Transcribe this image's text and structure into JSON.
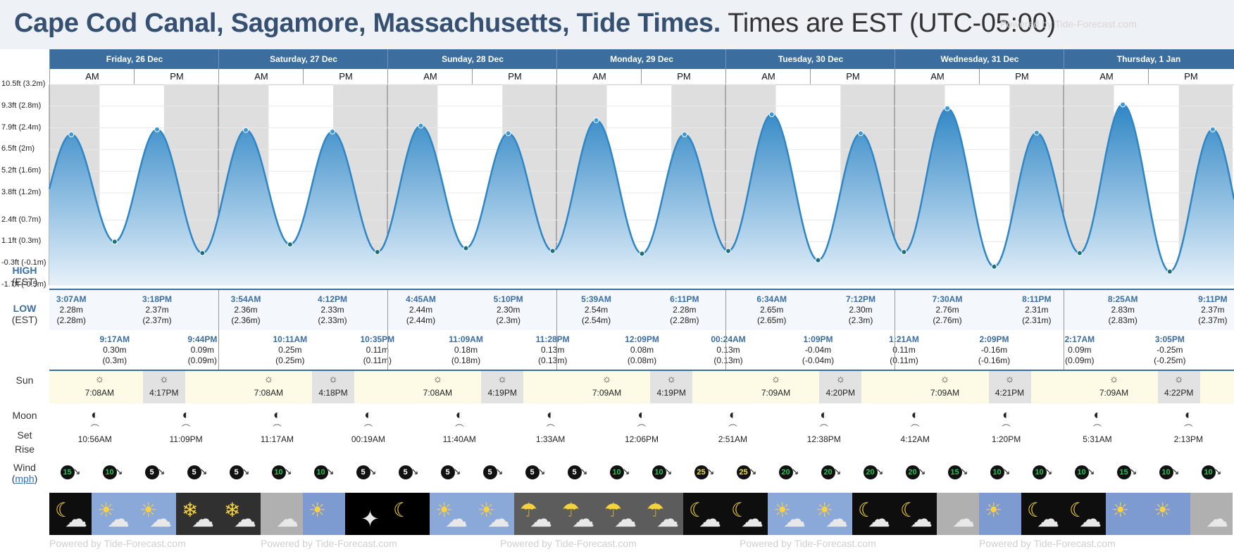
{
  "page": {
    "title": "Cape Cod Canal, Sagamore, Massachusetts, Tide Times.",
    "timezone": "Times are EST (UTC-05:00)",
    "watermark": "Powered by Tide-Forecast.com"
  },
  "rows": {
    "high_label": "HIGH",
    "high_sub": "(EST)",
    "low_label": "LOW",
    "low_sub": "(EST)",
    "sun": "Sun",
    "moon": "Moon",
    "set": "Set",
    "rise": "Rise",
    "wind": "Wind",
    "wind_unit": "mph"
  },
  "days": [
    "Friday, 26 Dec",
    "Saturday, 27 Dec",
    "Sunday, 28 Dec",
    "Monday, 29 Dec",
    "Tuesday, 30 Dec",
    "Wednesday, 31 Dec",
    "Thursday, 1 Jan"
  ],
  "ampm": [
    "AM",
    "PM"
  ],
  "chart_data": {
    "type": "area",
    "y_ticks": [
      "10.5ft (3.2m)",
      "9.3ft (2.8m)",
      "7.9ft (2.4m)",
      "6.5ft (2m)",
      "5.2ft (1.6m)",
      "3.8ft (1.2m)",
      "2.4ft (0.7m)",
      "1.1ft (0.3m)",
      "-0.3ft (-0.1m)",
      "-1.7ft (-0.5m)"
    ],
    "ylim_m": [
      -0.5,
      3.2
    ],
    "points": [
      {
        "day": 0,
        "time": "3:07AM",
        "m": 2.28
      },
      {
        "day": 0,
        "time": "9:17AM",
        "m": 0.3
      },
      {
        "day": 0,
        "time": "3:18PM",
        "m": 2.37
      },
      {
        "day": 0,
        "time": "9:44PM",
        "m": 0.09
      },
      {
        "day": 1,
        "time": "3:54AM",
        "m": 2.36
      },
      {
        "day": 1,
        "time": "10:11AM",
        "m": 0.25
      },
      {
        "day": 1,
        "time": "4:12PM",
        "m": 2.33
      },
      {
        "day": 1,
        "time": "10:35PM",
        "m": 0.11
      },
      {
        "day": 2,
        "time": "4:45AM",
        "m": 2.44
      },
      {
        "day": 2,
        "time": "11:09AM",
        "m": 0.18
      },
      {
        "day": 2,
        "time": "5:10PM",
        "m": 2.3
      },
      {
        "day": 2,
        "time": "11:28PM",
        "m": 0.13
      },
      {
        "day": 3,
        "time": "5:39AM",
        "m": 2.54
      },
      {
        "day": 3,
        "time": "12:09PM",
        "m": 0.08
      },
      {
        "day": 3,
        "time": "6:11PM",
        "m": 2.28
      },
      {
        "day": 4,
        "time": "00:24AM",
        "m": 0.13
      },
      {
        "day": 4,
        "time": "6:34AM",
        "m": 2.65
      },
      {
        "day": 4,
        "time": "1:09PM",
        "m": -0.04
      },
      {
        "day": 4,
        "time": "7:12PM",
        "m": 2.3
      },
      {
        "day": 5,
        "time": "1:21AM",
        "m": 0.11
      },
      {
        "day": 5,
        "time": "7:30AM",
        "m": 2.76
      },
      {
        "day": 5,
        "time": "2:09PM",
        "m": -0.16
      },
      {
        "day": 5,
        "time": "8:11PM",
        "m": 2.31
      },
      {
        "day": 6,
        "time": "2:17AM",
        "m": 0.09
      },
      {
        "day": 6,
        "time": "8:25AM",
        "m": 2.83
      },
      {
        "day": 6,
        "time": "3:05PM",
        "m": -0.25
      },
      {
        "day": 6,
        "time": "9:11PM",
        "m": 2.37
      }
    ]
  },
  "highs": [
    {
      "time": "3:07AM",
      "m": "2.28m",
      "paren": "(2.28m)"
    },
    {
      "time": "3:18PM",
      "m": "2.37m",
      "paren": "(2.37m)"
    },
    {
      "time": "3:54AM",
      "m": "2.36m",
      "paren": "(2.36m)"
    },
    {
      "time": "4:12PM",
      "m": "2.33m",
      "paren": "(2.33m)"
    },
    {
      "time": "4:45AM",
      "m": "2.44m",
      "paren": "(2.44m)"
    },
    {
      "time": "5:10PM",
      "m": "2.30m",
      "paren": "(2.3m)"
    },
    {
      "time": "5:39AM",
      "m": "2.54m",
      "paren": "(2.54m)"
    },
    {
      "time": "6:11PM",
      "m": "2.28m",
      "paren": "(2.28m)"
    },
    {
      "time": "6:34AM",
      "m": "2.65m",
      "paren": "(2.65m)"
    },
    {
      "time": "7:12PM",
      "m": "2.30m",
      "paren": "(2.3m)"
    },
    {
      "time": "7:30AM",
      "m": "2.76m",
      "paren": "(2.76m)"
    },
    {
      "time": "8:11PM",
      "m": "2.31m",
      "paren": "(2.31m)"
    },
    {
      "time": "8:25AM",
      "m": "2.83m",
      "paren": "(2.83m)"
    },
    {
      "time": "9:11PM",
      "m": "2.37m",
      "paren": "(2.37m)"
    }
  ],
  "lows": [
    {
      "time": "9:17AM",
      "m": "0.30m",
      "paren": "(0.3m)"
    },
    {
      "time": "9:44PM",
      "m": "0.09m",
      "paren": "(0.09m)"
    },
    {
      "time": "10:11AM",
      "m": "0.25m",
      "paren": "(0.25m)"
    },
    {
      "time": "10:35PM",
      "m": "0.11m",
      "paren": "(0.11m)"
    },
    {
      "time": "11:09AM",
      "m": "0.18m",
      "paren": "(0.18m)"
    },
    {
      "time": "11:28PM",
      "m": "0.13m",
      "paren": "(0.13m)"
    },
    {
      "time": "12:09PM",
      "m": "0.08m",
      "paren": "(0.08m)"
    },
    {
      "time": "00:24AM",
      "m": "0.13m",
      "paren": "(0.13m)"
    },
    {
      "time": "1:09PM",
      "m": "-0.04m",
      "paren": "(-0.04m)"
    },
    {
      "time": "1:21AM",
      "m": "0.11m",
      "paren": "(0.11m)"
    },
    {
      "time": "2:09PM",
      "m": "-0.16m",
      "paren": "(-0.16m)"
    },
    {
      "time": "2:17AM",
      "m": "0.09m",
      "paren": "(0.09m)"
    },
    {
      "time": "3:05PM",
      "m": "-0.25m",
      "paren": "(-0.25m)"
    }
  ],
  "sun": [
    {
      "rise": "7:08AM",
      "set": "4:17PM"
    },
    {
      "rise": "7:08AM",
      "set": "4:18PM"
    },
    {
      "rise": "7:08AM",
      "set": "4:19PM"
    },
    {
      "rise": "7:09AM",
      "set": "4:19PM"
    },
    {
      "rise": "7:09AM",
      "set": "4:20PM"
    },
    {
      "rise": "7:09AM",
      "set": "4:21PM"
    },
    {
      "rise": "7:09AM",
      "set": "4:22PM"
    }
  ],
  "moon": [
    "10:56AM",
    "11:09PM",
    "11:17AM",
    "00:19AM",
    "11:40AM",
    "1:33AM",
    "12:06PM",
    "2:51AM",
    "12:38PM",
    "4:12AM",
    "1:20PM",
    "5:31AM",
    "2:13PM"
  ],
  "wind": [
    "15",
    "10",
    "5",
    "5",
    "5",
    "10",
    "10",
    "5",
    "5",
    "5",
    "5",
    "5",
    "5",
    "10",
    "10",
    "25",
    "25",
    "20",
    "20",
    "20",
    "20",
    "15",
    "10",
    "10",
    "10",
    "15",
    "10",
    "10"
  ],
  "weather": [
    "night-cloud",
    "sun-cloud",
    "sun-cloud",
    "snow-cloud",
    "snow-cloud",
    "cloud",
    "sun",
    "night",
    "night-moon",
    "sun-cloud",
    "sun-cloud",
    "rain-cloud",
    "rain-cloud",
    "rain-cloud",
    "rain-cloud",
    "night-cloud",
    "night-cloud",
    "sun-cloud",
    "sun-cloud",
    "night-cloud",
    "night-cloud",
    "cloud",
    "sun",
    "night-cloud",
    "night-cloud",
    "sun",
    "sun",
    "cloud"
  ],
  "colors": {
    "header": "#3b6e9e",
    "title": "#355071",
    "tide": "#2f86c5",
    "night": "#dcdcdc"
  }
}
